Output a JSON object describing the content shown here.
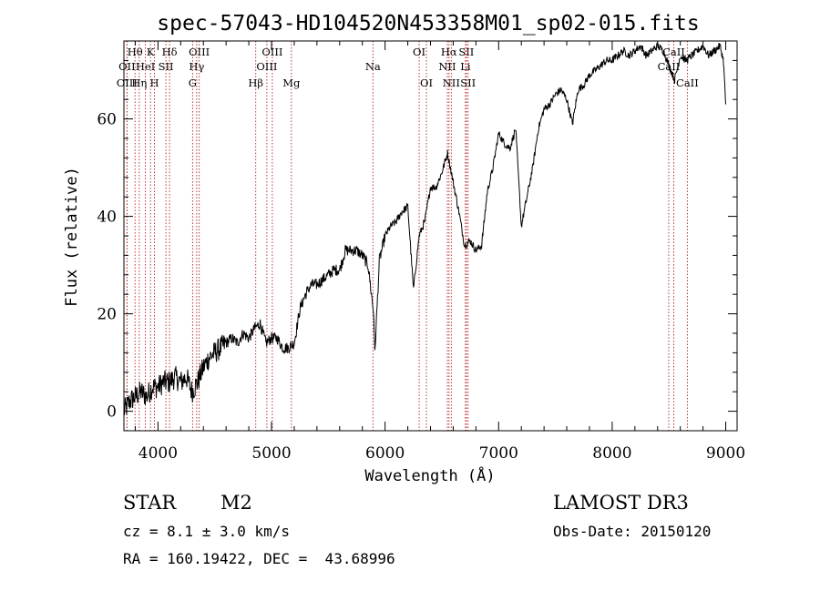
{
  "chart_data": {
    "type": "line",
    "title": "spec-57043-HD104520N453358M01_sp02-015.fits",
    "xlabel": "Wavelength (Å)",
    "ylabel": "Flux (relative)",
    "xlim": [
      3700,
      9100
    ],
    "ylim": [
      -4,
      76
    ],
    "x_ticks": [
      4000,
      5000,
      6000,
      7000,
      8000,
      9000
    ],
    "y_ticks": [
      0,
      20,
      40,
      60
    ],
    "series": [
      {
        "name": "flux",
        "x": [
          3700,
          3750,
          3800,
          3850,
          3900,
          3950,
          4000,
          4050,
          4100,
          4150,
          4200,
          4250,
          4300,
          4350,
          4400,
          4450,
          4500,
          4550,
          4600,
          4650,
          4700,
          4750,
          4800,
          4850,
          4900,
          4950,
          5000,
          5050,
          5100,
          5150,
          5200,
          5250,
          5300,
          5350,
          5400,
          5450,
          5500,
          5550,
          5600,
          5650,
          5700,
          5750,
          5800,
          5850,
          5900,
          5910,
          5950,
          6000,
          6050,
          6100,
          6150,
          6200,
          6250,
          6300,
          6350,
          6400,
          6450,
          6500,
          6550,
          6600,
          6650,
          6700,
          6750,
          6800,
          6850,
          6900,
          6950,
          7000,
          7050,
          7100,
          7150,
          7200,
          7250,
          7300,
          7350,
          7400,
          7450,
          7500,
          7550,
          7600,
          7650,
          7700,
          7750,
          7800,
          7850,
          7900,
          7950,
          8000,
          8050,
          8100,
          8150,
          8200,
          8250,
          8300,
          8350,
          8400,
          8450,
          8500,
          8550,
          8600,
          8650,
          8700,
          8750,
          8800,
          8850,
          8900,
          8950,
          8980,
          9000
        ],
        "values": [
          0,
          2,
          3,
          4,
          3,
          5,
          5,
          6,
          6,
          7,
          6,
          7,
          4,
          6,
          9,
          11,
          12,
          13,
          14,
          15,
          14,
          16,
          15,
          17,
          18,
          14,
          15,
          15,
          13,
          13,
          14,
          21,
          24,
          26,
          26,
          27,
          28,
          29,
          29,
          33,
          33,
          33,
          32,
          30,
          20,
          12,
          31,
          36,
          38,
          39,
          41,
          42,
          25,
          36,
          39,
          46,
          46,
          49,
          53,
          47,
          41,
          34,
          35,
          33,
          34,
          45,
          50,
          57,
          55,
          54,
          58,
          38,
          44,
          50,
          58,
          62,
          63,
          65,
          66,
          64,
          59,
          66,
          67,
          69,
          70,
          71,
          72,
          72,
          73,
          74,
          73,
          74,
          75,
          73,
          74,
          75,
          74,
          71,
          68,
          73,
          72,
          73,
          74,
          75,
          73,
          74,
          75,
          72,
          63
        ]
      }
    ],
    "spectral_lines": [
      {
        "label": "Hθ",
        "x": 3798,
        "row": 1
      },
      {
        "label": "OII",
        "x": 3727,
        "row": 2
      },
      {
        "label": "OIII",
        "x": 3727,
        "row": 3
      },
      {
        "label": "K",
        "x": 3934,
        "row": 1
      },
      {
        "label": "HeI",
        "x": 3889,
        "row": 2
      },
      {
        "label": "Hη",
        "x": 3835,
        "row": 3
      },
      {
        "label": "Hδ",
        "x": 4102,
        "row": 1
      },
      {
        "label": "SII",
        "x": 4070,
        "row": 2
      },
      {
        "label": "H",
        "x": 3969,
        "row": 3
      },
      {
        "label": "OIII",
        "x": 4363,
        "row": 1
      },
      {
        "label": "Hγ",
        "x": 4341,
        "row": 2
      },
      {
        "label": "G",
        "x": 4305,
        "row": 3
      },
      {
        "label": "OIII",
        "x": 5007,
        "row": 1
      },
      {
        "label": "OIII",
        "x": 4959,
        "row": 2
      },
      {
        "label": "Hβ",
        "x": 4861,
        "row": 3
      },
      {
        "label": "Mg",
        "x": 5175,
        "row": 3
      },
      {
        "label": "Na",
        "x": 5893,
        "row": 2
      },
      {
        "label": "OI",
        "x": 6300,
        "row": 1
      },
      {
        "label": "OI",
        "x": 6364,
        "row": 3
      },
      {
        "label": "Hα",
        "x": 6563,
        "row": 1
      },
      {
        "label": "SII",
        "x": 6716,
        "row": 1
      },
      {
        "label": "NII",
        "x": 6548,
        "row": 2
      },
      {
        "label": "Li",
        "x": 6708,
        "row": 2
      },
      {
        "label": "NII",
        "x": 6583,
        "row": 3
      },
      {
        "label": "SII",
        "x": 6731,
        "row": 3
      },
      {
        "label": "CaII",
        "x": 8542,
        "row": 1
      },
      {
        "label": "CaII",
        "x": 8498,
        "row": 2
      },
      {
        "label": "CaII",
        "x": 8662,
        "row": 3
      }
    ],
    "line_color": "#b22222"
  },
  "footer": {
    "object_class": "STAR",
    "subclass": "M2",
    "survey": "LAMOST DR3",
    "redshift": "cz = 8.1 ± 3.0 km/s",
    "obs_date": "Obs-Date: 20150120",
    "coords": "RA = 160.19422, DEC =  43.68996"
  }
}
